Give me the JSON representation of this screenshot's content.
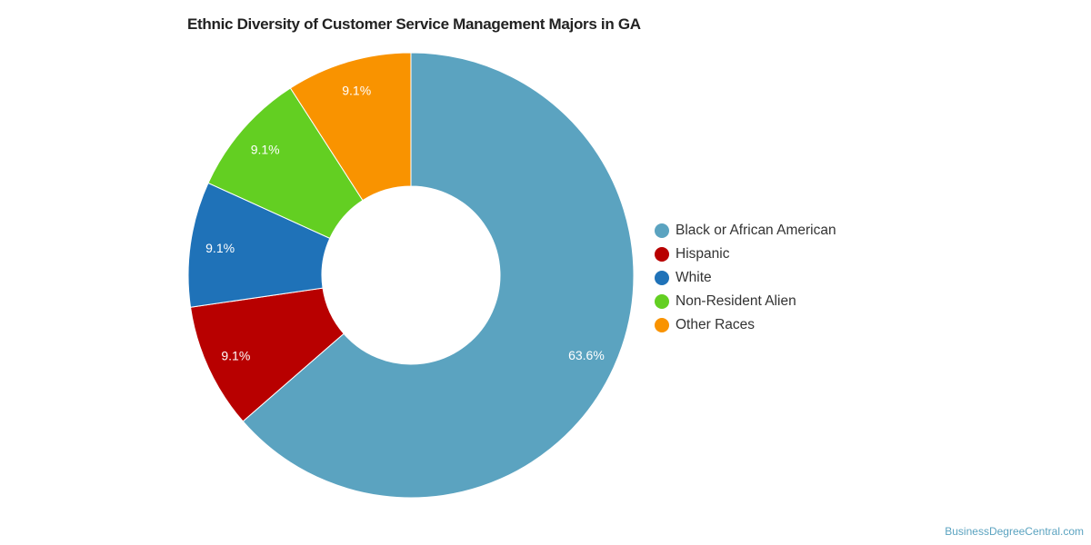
{
  "chart_data": {
    "type": "pie",
    "variant": "donut",
    "title": "Ethnic Diversity of Customer Service Management Majors in GA",
    "slices": [
      {
        "label": "Black or African American",
        "value": 63.6,
        "display": "63.6%",
        "color": "#5ba3c0"
      },
      {
        "label": "Hispanic",
        "value": 9.1,
        "display": "9.1%",
        "color": "#b80000"
      },
      {
        "label": "White",
        "value": 9.1,
        "display": "9.1%",
        "color": "#1f72b8"
      },
      {
        "label": "Non-Resident Alien",
        "value": 9.1,
        "display": "9.1%",
        "color": "#63cf22"
      },
      {
        "label": "Other Races",
        "value": 9.1,
        "display": "9.1%",
        "color": "#f99300"
      }
    ],
    "legend_position": "right"
  },
  "credit": "BusinessDegreeCentral.com"
}
